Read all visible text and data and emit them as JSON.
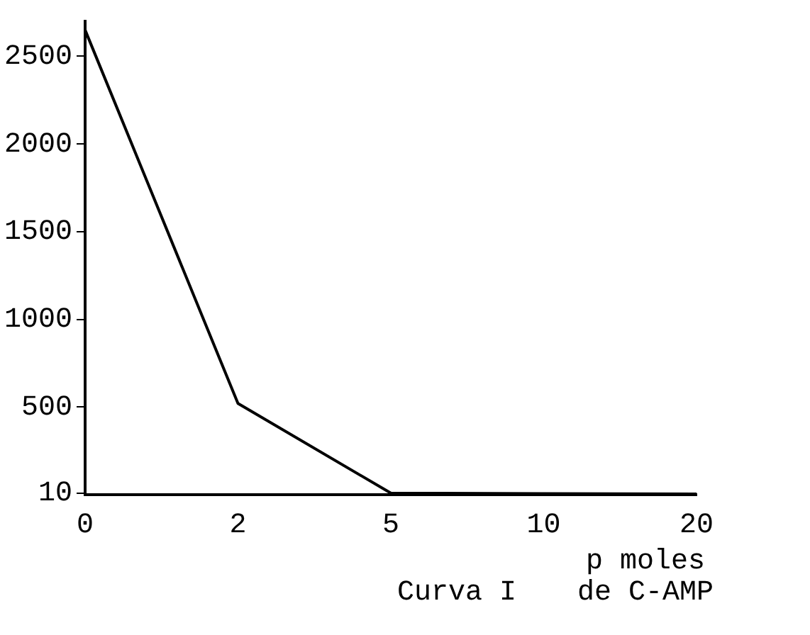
{
  "chart_data": {
    "type": "line",
    "categories": [
      "0",
      "2",
      "5",
      "10",
      "20"
    ],
    "series": [
      {
        "color": "#000000",
        "values": [
          2650,
          520,
          9,
          6,
          4
        ]
      }
    ],
    "ylim": [
      0,
      2700
    ],
    "yticks": [
      10,
      500,
      1000,
      1500,
      2000,
      2500
    ],
    "xlabel": "p moles de C-AMP",
    "annotations": [
      "Curva I"
    ],
    "grid": false,
    "legend": false,
    "marker": "none",
    "line_style": "solid"
  }
}
